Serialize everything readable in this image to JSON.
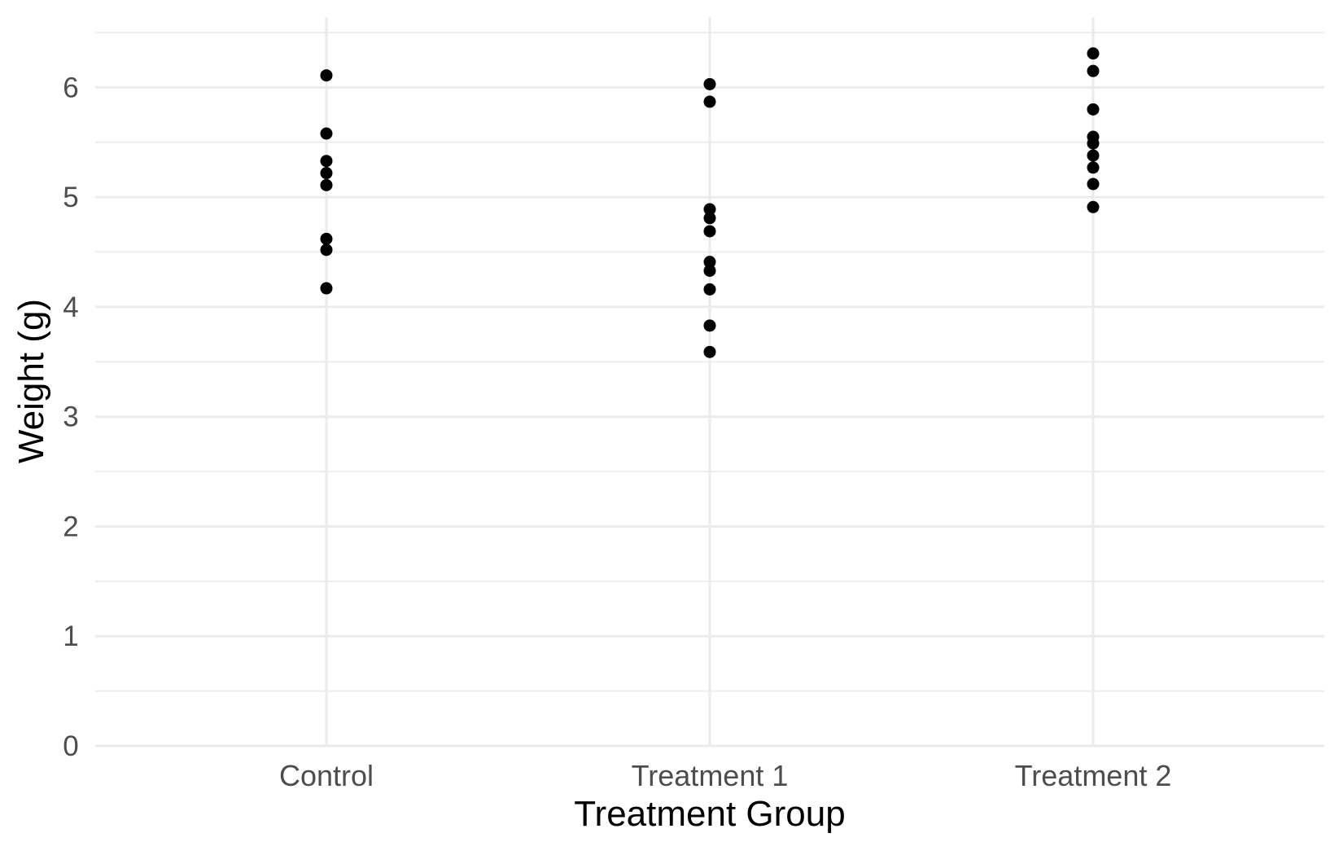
{
  "chart_data": {
    "type": "scatter",
    "variant": "strip-plot (categorical x, ggplot theme_minimal style)",
    "title": "",
    "xlabel": "Treatment Group",
    "ylabel": "Weight (g)",
    "categories": [
      "Control",
      "Treatment 1",
      "Treatment 2"
    ],
    "series": [
      {
        "name": "Control",
        "values": [
          6.11,
          5.58,
          5.33,
          5.22,
          5.11,
          4.62,
          4.52,
          4.17
        ]
      },
      {
        "name": "Treatment 1",
        "values": [
          6.03,
          5.87,
          4.89,
          4.81,
          4.69,
          4.41,
          4.33,
          4.16,
          3.83,
          3.59
        ]
      },
      {
        "name": "Treatment 2",
        "values": [
          6.31,
          6.15,
          5.8,
          5.55,
          5.49,
          5.38,
          5.27,
          5.12,
          4.91
        ]
      }
    ],
    "y_major_ticks": [
      0,
      1,
      2,
      3,
      4,
      5,
      6
    ],
    "y_minor_ticks": [
      0.5,
      1.5,
      2.5,
      3.5,
      4.5,
      5.5,
      6.5
    ],
    "ylim": [
      0,
      6.64
    ],
    "grid": "horizontal major+minor gridlines; one vertical major gridline per category; no axis lines, no ticks",
    "legend": "none",
    "point_color": "#000000",
    "point_radius_px": 7.5,
    "grid_major_color": "#ebebeb",
    "grid_minor_color": "#ededed",
    "tick_label_color": "#4d4d4d",
    "axis_title_color": "#000000",
    "background_color": "#ffffff"
  }
}
